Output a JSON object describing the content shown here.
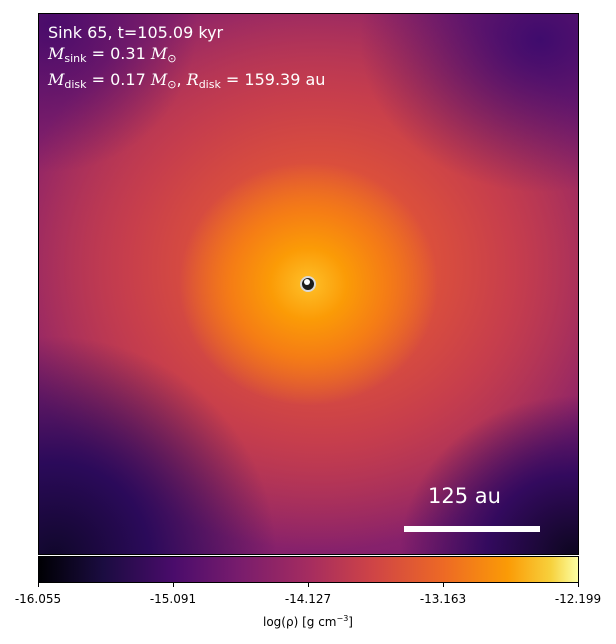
{
  "annotation": {
    "line1": "Sink 65, t=105.09 kyr",
    "m_sink_symbol": "M",
    "m_sink_sub": "sink",
    "m_sink_value": "= 0.31",
    "m_unit": "M",
    "m_unit_sub": "⊙",
    "m_disk_symbol": "M",
    "m_disk_sub": "disk",
    "m_disk_value": "= 0.17",
    "r_disk_symbol": "R",
    "r_disk_sub": "disk",
    "r_disk_value": "= 159.39 au",
    "separator": ","
  },
  "scale_bar": {
    "label": "125 au"
  },
  "colorbar": {
    "colormap": "inferno",
    "ticks": [
      "-16.055",
      "-15.091",
      "-14.127",
      "-13.163",
      "-12.199"
    ],
    "label_prefix": "log(ρ) [g cm",
    "label_exponent": "−3",
    "label_suffix": "]"
  }
}
